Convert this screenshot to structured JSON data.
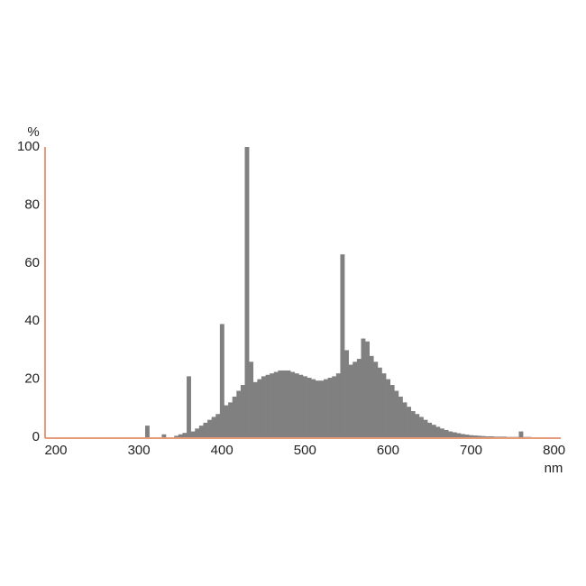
{
  "chart_data": {
    "type": "bar",
    "y_label": "%",
    "x_label": "nm",
    "x": [
      305,
      310,
      315,
      320,
      325,
      330,
      335,
      340,
      345,
      350,
      355,
      360,
      365,
      370,
      375,
      380,
      385,
      390,
      395,
      400,
      405,
      410,
      415,
      420,
      425,
      430,
      435,
      440,
      445,
      450,
      455,
      460,
      465,
      470,
      475,
      480,
      485,
      490,
      495,
      500,
      505,
      510,
      515,
      520,
      525,
      530,
      535,
      540,
      545,
      550,
      555,
      560,
      565,
      570,
      575,
      580,
      585,
      590,
      595,
      600,
      605,
      610,
      615,
      620,
      625,
      630,
      635,
      640,
      645,
      650,
      655,
      660,
      665,
      670,
      675,
      680,
      685,
      690,
      695,
      700,
      705,
      710,
      715,
      720,
      725,
      730,
      735,
      740,
      745,
      750,
      755,
      760,
      765,
      770
    ],
    "values": [
      0,
      4,
      0,
      0,
      0,
      1,
      0,
      0,
      0.5,
      1,
      1.5,
      21,
      2,
      3,
      4,
      5,
      6,
      7,
      8,
      39,
      11,
      12,
      14,
      16,
      18,
      100,
      26,
      19,
      20,
      21,
      21.5,
      22,
      22.5,
      23,
      23,
      23,
      22.5,
      22,
      21.5,
      21,
      20.5,
      20,
      19.5,
      19.5,
      20,
      20.5,
      21,
      22,
      63,
      30,
      25,
      26,
      27,
      34,
      33,
      28,
      26,
      24,
      22,
      20,
      18,
      16,
      14,
      12,
      10.5,
      9,
      8,
      7,
      6,
      5,
      4.3,
      3.6,
      3,
      2.5,
      2,
      1.7,
      1.4,
      1.1,
      0.9,
      0.7,
      0.6,
      0.5,
      0.4,
      0.3,
      0.3,
      0.2,
      0.2,
      0.2,
      0.1,
      0.1,
      0.1,
      2,
      0.1,
      0.1
    ],
    "color": "#808080",
    "axis_color": "#e07a4f",
    "xlim": [
      187,
      808
    ],
    "xticks": [
      200,
      300,
      400,
      500,
      600,
      700,
      800
    ],
    "ylim": [
      0,
      100
    ],
    "yticks": [
      0,
      20,
      40,
      60,
      80,
      100
    ],
    "grid": false
  }
}
